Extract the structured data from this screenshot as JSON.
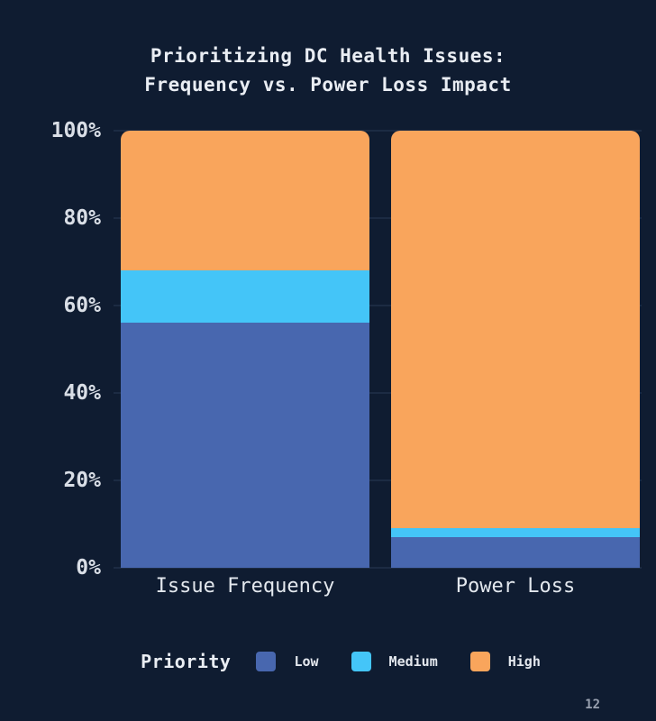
{
  "page": {
    "background": "#0F1C31",
    "page_number": "12"
  },
  "chart_data": {
    "type": "bar",
    "stacked": true,
    "orientation": "vertical",
    "title": "Prioritizing DC Health Issues: Frequency vs. Power Loss Impact",
    "title_lines": [
      "Prioritizing DC Health Issues:",
      "Frequency vs. Power Loss Impact"
    ],
    "categories": [
      "Issue Frequency",
      "Power Loss"
    ],
    "series": [
      {
        "name": "Low",
        "color": "#4867AF",
        "values": [
          56,
          7
        ]
      },
      {
        "name": "Medium",
        "color": "#44C5F8",
        "values": [
          12,
          2
        ]
      },
      {
        "name": "High",
        "color": "#F9A55C",
        "values": [
          32,
          91
        ]
      }
    ],
    "y_ticks": [
      "0%",
      "20%",
      "40%",
      "60%",
      "80%",
      "100%"
    ],
    "ylim": [
      0,
      100
    ],
    "xlabel": "",
    "ylabel": "",
    "grid": true,
    "gridline_color": "#1C2B43",
    "legend": {
      "title": "Priority",
      "position": "bottom"
    }
  }
}
